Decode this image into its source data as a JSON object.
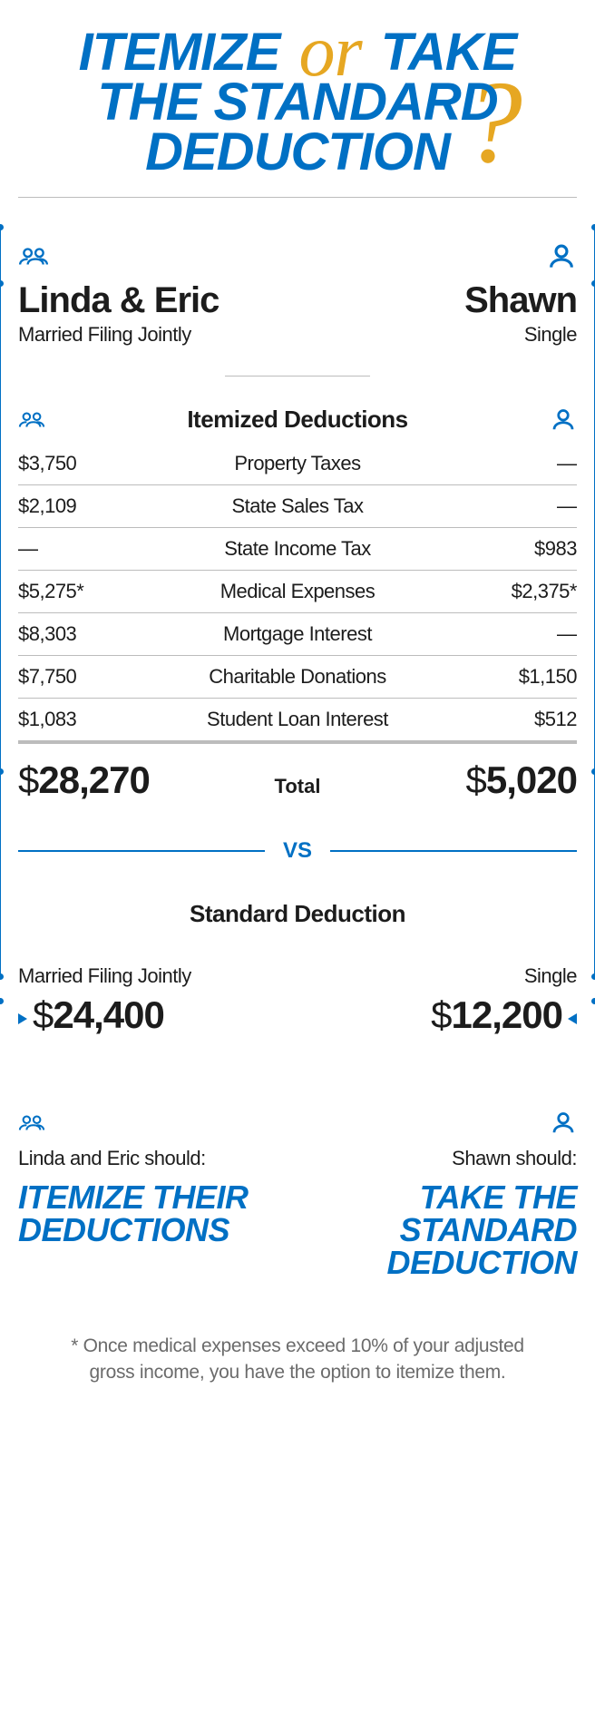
{
  "colors": {
    "primary": "#0070c4",
    "accent": "#e6a722",
    "text": "#1c1c1c",
    "rule": "#bcbcbc",
    "muted": "#6b6b6b",
    "background": "#ffffff"
  },
  "typography": {
    "title_fontsize": 58,
    "name_fontsize": 40,
    "body_fontsize": 22,
    "section_title_fontsize": 26,
    "total_fontsize": 42,
    "advice_fontsize": 36,
    "footnote_fontsize": 21
  },
  "title": {
    "line1_a": "ITEMIZE",
    "or": "or",
    "line1_b": "TAKE",
    "line2": "THE STANDARD",
    "line3": "DEDUCTION",
    "qmark": "?"
  },
  "people": {
    "left": {
      "name": "Linda & Eric",
      "status": "Married Filing Jointly"
    },
    "right": {
      "name": "Shawn",
      "status": "Single"
    }
  },
  "itemized": {
    "heading": "Itemized Deductions",
    "rows": [
      {
        "left": "$3,750",
        "label": "Property Taxes",
        "right": "—"
      },
      {
        "left": "$2,109",
        "label": "State Sales Tax",
        "right": "—"
      },
      {
        "left": "—",
        "label": "State Income Tax",
        "right": "$983"
      },
      {
        "left": "$5,275*",
        "label": "Medical Expenses",
        "right": "$2,375*"
      },
      {
        "left": "$8,303",
        "label": "Mortgage Interest",
        "right": "—"
      },
      {
        "left": "$7,750",
        "label": "Charitable Donations",
        "right": "$1,150"
      },
      {
        "left": "$1,083",
        "label": "Student Loan Interest",
        "right": "$512"
      }
    ],
    "total_label": "Total",
    "total_left_sym": "$",
    "total_left_num": "28,270",
    "total_right_sym": "$",
    "total_right_num": "5,020"
  },
  "vs": "VS",
  "standard": {
    "heading": "Standard Deduction",
    "left": {
      "label": "Married Filing Jointly",
      "sym": "$",
      "num": "24,400"
    },
    "right": {
      "label": "Single",
      "sym": "$",
      "num": "12,200"
    }
  },
  "conclusion": {
    "left": {
      "should": "Linda and Eric should:",
      "advice": "ITEMIZE THEIR DEDUCTIONS"
    },
    "right": {
      "should": "Shawn should:",
      "advice": "TAKE THE STANDARD DEDUCTION"
    }
  },
  "footnote": "* Once medical expenses exceed 10% of your adjusted gross income, you have the option to itemize them."
}
